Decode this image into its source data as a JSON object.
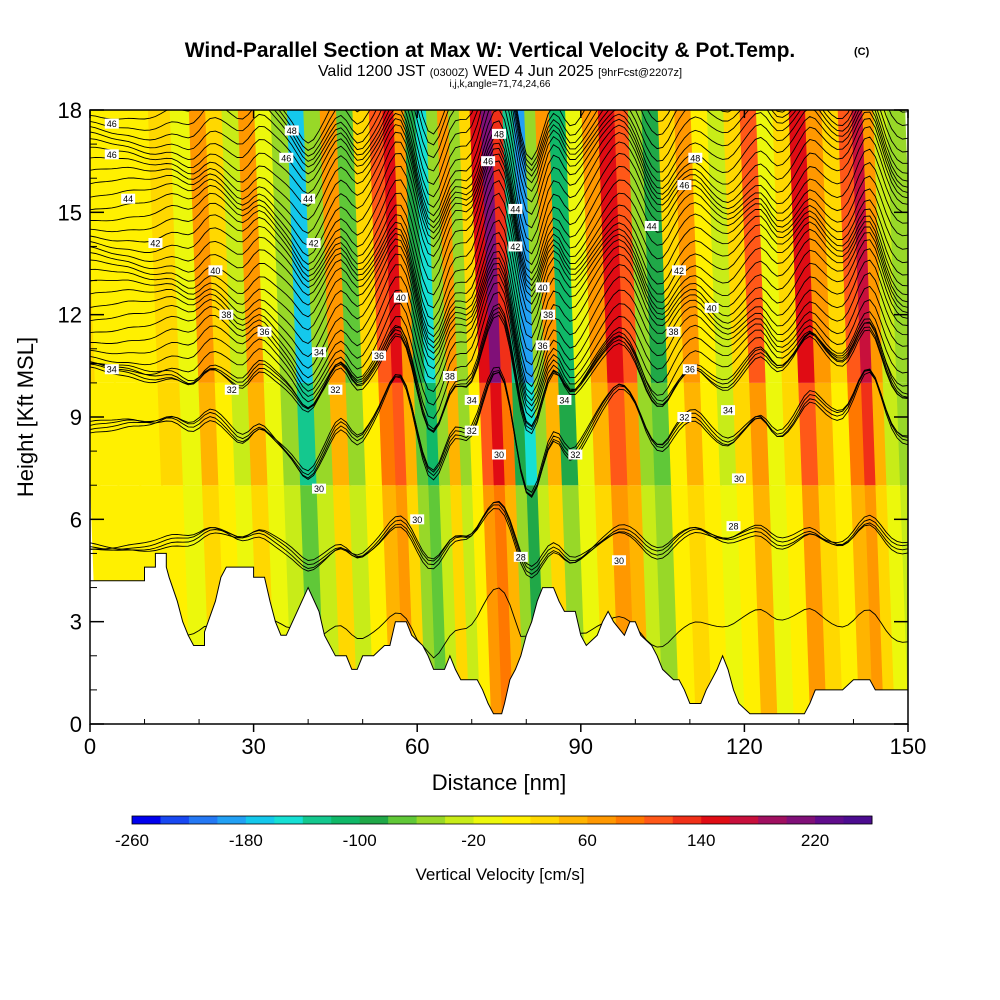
{
  "title": "Wind-Parallel Section at Max W: Vertical Velocity & Pot.Temp.",
  "copyright_mark": "(C)",
  "subtitle": {
    "valid": "Valid 1200 JST",
    "utc": "(0300Z)",
    "date": "WED 4 Jun 2025",
    "forecast": "[9hrFcst@2207z]"
  },
  "grid_info": "i,j,k,angle=71,74,24,66",
  "chart_data": {
    "type": "heatmap",
    "xlabel": "Distance [nm]",
    "ylabel": "Height [Kft MSL]",
    "xlim": [
      0,
      150
    ],
    "ylim": [
      0,
      18
    ],
    "x_ticks": [
      0,
      30,
      60,
      90,
      120,
      150
    ],
    "y_ticks": [
      0,
      3,
      6,
      9,
      12,
      15,
      18
    ],
    "colorbar": {
      "label": "Vertical Velocity [cm/s]",
      "min": -260,
      "max": 260,
      "tick_labels": [
        "-260",
        "-180",
        "-100",
        "-20",
        "60",
        "140",
        "220"
      ],
      "tick_values": [
        -260,
        -180,
        -100,
        -20,
        60,
        140,
        220
      ],
      "colors": [
        "#0000ee",
        "#1848f2",
        "#2478f4",
        "#22a0f4",
        "#14c8ec",
        "#16e0d4",
        "#14c88e",
        "#10b868",
        "#20a848",
        "#60c838",
        "#98d828",
        "#c8ec18",
        "#ecf80c",
        "#fff000",
        "#ffd800",
        "#ffb400",
        "#ff9800",
        "#ff7800",
        "#ff5818",
        "#f03018",
        "#e00c14",
        "#c8103c",
        "#a01060",
        "#801078",
        "#600c8c",
        "#4c0c90"
      ]
    },
    "vertical_velocity_columns": [
      {
        "x": 0,
        "w": 20
      },
      {
        "x": 3,
        "w": 10
      },
      {
        "x": 7,
        "w": 15
      },
      {
        "x": 11,
        "w": 0
      },
      {
        "x": 15,
        "w": 30
      },
      {
        "x": 19,
        "w": -15
      },
      {
        "x": 22,
        "w": 70
      },
      {
        "x": 25,
        "w": 25
      },
      {
        "x": 28,
        "w": -40
      },
      {
        "x": 31,
        "w": 60
      },
      {
        "x": 34,
        "w": -10
      },
      {
        "x": 37,
        "w": -60
      },
      {
        "x": 40,
        "w": -170
      },
      {
        "x": 43,
        "w": -60
      },
      {
        "x": 46,
        "w": 60
      },
      {
        "x": 49,
        "w": -80
      },
      {
        "x": 52,
        "w": 20
      },
      {
        "x": 55,
        "w": 110
      },
      {
        "x": 57,
        "w": 150
      },
      {
        "x": 59,
        "w": 60
      },
      {
        "x": 61,
        "w": -100
      },
      {
        "x": 63,
        "w": -160
      },
      {
        "x": 65,
        "w": -60
      },
      {
        "x": 67,
        "w": 60
      },
      {
        "x": 69,
        "w": -60
      },
      {
        "x": 71,
        "w": 20
      },
      {
        "x": 73,
        "w": 140
      },
      {
        "x": 75,
        "w": 200
      },
      {
        "x": 77,
        "w": 120
      },
      {
        "x": 79,
        "w": -130
      },
      {
        "x": 81,
        "w": -200
      },
      {
        "x": 83,
        "w": -60
      },
      {
        "x": 85,
        "w": 60
      },
      {
        "x": 88,
        "w": -120
      },
      {
        "x": 91,
        "w": -20
      },
      {
        "x": 94,
        "w": 70
      },
      {
        "x": 97,
        "w": 150
      },
      {
        "x": 100,
        "w": 100
      },
      {
        "x": 102,
        "w": -60
      },
      {
        "x": 105,
        "w": -100
      },
      {
        "x": 108,
        "w": 20
      },
      {
        "x": 111,
        "w": 70
      },
      {
        "x": 114,
        "w": 0
      },
      {
        "x": 117,
        "w": -40
      },
      {
        "x": 120,
        "w": 30
      },
      {
        "x": 123,
        "w": 100
      },
      {
        "x": 126,
        "w": -20
      },
      {
        "x": 129,
        "w": 40
      },
      {
        "x": 132,
        "w": 150
      },
      {
        "x": 135,
        "w": 60
      },
      {
        "x": 138,
        "w": 20
      },
      {
        "x": 141,
        "w": 110
      },
      {
        "x": 143,
        "w": 170
      },
      {
        "x": 145,
        "w": 70
      },
      {
        "x": 147,
        "w": -40
      },
      {
        "x": 150,
        "w": -60
      }
    ],
    "terrain_height_kft": [
      {
        "x": 0,
        "h": 4.2
      },
      {
        "x": 10,
        "h": 4.2
      },
      {
        "x": 10,
        "h": 4.6
      },
      {
        "x": 12,
        "h": 4.6
      },
      {
        "x": 12,
        "h": 5.0
      },
      {
        "x": 14,
        "h": 5.0
      },
      {
        "x": 14,
        "h": 4.6
      },
      {
        "x": 14.5,
        "h": 4.3
      },
      {
        "x": 16,
        "h": 3.6
      },
      {
        "x": 17,
        "h": 3.0
      },
      {
        "x": 18,
        "h": 2.6
      },
      {
        "x": 19,
        "h": 2.3
      },
      {
        "x": 21,
        "h": 2.3
      },
      {
        "x": 21,
        "h": 2.7
      },
      {
        "x": 23,
        "h": 3.6
      },
      {
        "x": 24,
        "h": 4.3
      },
      {
        "x": 25,
        "h": 4.6
      },
      {
        "x": 30,
        "h": 4.6
      },
      {
        "x": 30,
        "h": 4.3
      },
      {
        "x": 32,
        "h": 4.3
      },
      {
        "x": 33,
        "h": 3.6
      },
      {
        "x": 34,
        "h": 3.0
      },
      {
        "x": 35,
        "h": 2.6
      },
      {
        "x": 36,
        "h": 2.6
      },
      {
        "x": 38,
        "h": 3.3
      },
      {
        "x": 40,
        "h": 4.0
      },
      {
        "x": 42,
        "h": 3.3
      },
      {
        "x": 43,
        "h": 2.6
      },
      {
        "x": 45,
        "h": 2.0
      },
      {
        "x": 47,
        "h": 2.0
      },
      {
        "x": 48,
        "h": 1.6
      },
      {
        "x": 49,
        "h": 1.6
      },
      {
        "x": 50,
        "h": 2.0
      },
      {
        "x": 52,
        "h": 2.0
      },
      {
        "x": 54,
        "h": 2.3
      },
      {
        "x": 55,
        "h": 2.3
      },
      {
        "x": 56,
        "h": 3.0
      },
      {
        "x": 58,
        "h": 3.0
      },
      {
        "x": 59,
        "h": 2.6
      },
      {
        "x": 61,
        "h": 2.3
      },
      {
        "x": 62,
        "h": 2.0
      },
      {
        "x": 63,
        "h": 1.6
      },
      {
        "x": 65,
        "h": 1.6
      },
      {
        "x": 66,
        "h": 2.0
      },
      {
        "x": 67,
        "h": 1.6
      },
      {
        "x": 68,
        "h": 1.3
      },
      {
        "x": 71,
        "h": 1.3
      },
      {
        "x": 72,
        "h": 1.0
      },
      {
        "x": 73,
        "h": 0.6
      },
      {
        "x": 74,
        "h": 0.3
      },
      {
        "x": 75.5,
        "h": 0.3
      },
      {
        "x": 76,
        "h": 0.6
      },
      {
        "x": 77,
        "h": 1.3
      },
      {
        "x": 78,
        "h": 1.6
      },
      {
        "x": 79,
        "h": 2.0
      },
      {
        "x": 80,
        "h": 2.6
      },
      {
        "x": 81,
        "h": 3.0
      },
      {
        "x": 82,
        "h": 3.6
      },
      {
        "x": 83,
        "h": 4.0
      },
      {
        "x": 85,
        "h": 4.0
      },
      {
        "x": 86,
        "h": 3.6
      },
      {
        "x": 87,
        "h": 3.3
      },
      {
        "x": 89,
        "h": 3.3
      },
      {
        "x": 90,
        "h": 2.6
      },
      {
        "x": 91,
        "h": 2.3
      },
      {
        "x": 93,
        "h": 2.6
      },
      {
        "x": 94,
        "h": 3.0
      },
      {
        "x": 95,
        "h": 3.3
      },
      {
        "x": 96,
        "h": 3.0
      },
      {
        "x": 98,
        "h": 2.6
      },
      {
        "x": 99,
        "h": 3.0
      },
      {
        "x": 100,
        "h": 3.0
      },
      {
        "x": 101,
        "h": 2.6
      },
      {
        "x": 103,
        "h": 2.3
      },
      {
        "x": 104,
        "h": 2.0
      },
      {
        "x": 105,
        "h": 1.6
      },
      {
        "x": 107,
        "h": 1.3
      },
      {
        "x": 108,
        "h": 1.3
      },
      {
        "x": 109,
        "h": 1.0
      },
      {
        "x": 110,
        "h": 0.6
      },
      {
        "x": 112,
        "h": 0.6
      },
      {
        "x": 113,
        "h": 1.0
      },
      {
        "x": 114,
        "h": 1.3
      },
      {
        "x": 115,
        "h": 1.6
      },
      {
        "x": 116,
        "h": 2.0
      },
      {
        "x": 117,
        "h": 1.6
      },
      {
        "x": 118,
        "h": 1.0
      },
      {
        "x": 119,
        "h": 0.6
      },
      {
        "x": 121,
        "h": 0.3
      },
      {
        "x": 131,
        "h": 0.3
      },
      {
        "x": 132,
        "h": 0.6
      },
      {
        "x": 133,
        "h": 1.0
      },
      {
        "x": 138,
        "h": 1.0
      },
      {
        "x": 140,
        "h": 1.3
      },
      {
        "x": 143,
        "h": 1.3
      },
      {
        "x": 144,
        "h": 1.0
      },
      {
        "x": 150,
        "h": 1.0
      }
    ],
    "theta_contours": {
      "levels": [
        28,
        30,
        32,
        34,
        36,
        38,
        40,
        42,
        44,
        46,
        48
      ],
      "labels": [
        {
          "text": "46",
          "x": 4,
          "y": 17.6
        },
        {
          "text": "46",
          "x": 4,
          "y": 16.7
        },
        {
          "text": "44",
          "x": 7,
          "y": 15.4
        },
        {
          "text": "42",
          "x": 12,
          "y": 14.1
        },
        {
          "text": "40",
          "x": 23,
          "y": 13.3
        },
        {
          "text": "38",
          "x": 25,
          "y": 12.0
        },
        {
          "text": "36",
          "x": 32,
          "y": 11.5
        },
        {
          "text": "34",
          "x": 4,
          "y": 10.4
        },
        {
          "text": "32",
          "x": 26,
          "y": 9.8
        },
        {
          "text": "48",
          "x": 37,
          "y": 17.4
        },
        {
          "text": "46",
          "x": 36,
          "y": 16.6
        },
        {
          "text": "44",
          "x": 40,
          "y": 15.4
        },
        {
          "text": "42",
          "x": 41,
          "y": 14.1
        },
        {
          "text": "34",
          "x": 42,
          "y": 10.9
        },
        {
          "text": "32",
          "x": 45,
          "y": 9.8
        },
        {
          "text": "36",
          "x": 53,
          "y": 10.8
        },
        {
          "text": "40",
          "x": 57,
          "y": 12.5
        },
        {
          "text": "30",
          "x": 42,
          "y": 6.9
        },
        {
          "text": "30",
          "x": 60,
          "y": 6.0
        },
        {
          "text": "38",
          "x": 66,
          "y": 10.2
        },
        {
          "text": "34",
          "x": 70,
          "y": 9.5
        },
        {
          "text": "32",
          "x": 70,
          "y": 8.6
        },
        {
          "text": "30",
          "x": 75,
          "y": 7.9
        },
        {
          "text": "48",
          "x": 75,
          "y": 17.3
        },
        {
          "text": "46",
          "x": 73,
          "y": 16.5
        },
        {
          "text": "44",
          "x": 78,
          "y": 15.1
        },
        {
          "text": "42",
          "x": 78,
          "y": 14.0
        },
        {
          "text": "40",
          "x": 83,
          "y": 12.8
        },
        {
          "text": "38",
          "x": 84,
          "y": 12.0
        },
        {
          "text": "36",
          "x": 83,
          "y": 11.1
        },
        {
          "text": "34",
          "x": 87,
          "y": 9.5
        },
        {
          "text": "32",
          "x": 89,
          "y": 7.9
        },
        {
          "text": "28",
          "x": 79,
          "y": 4.9
        },
        {
          "text": "30",
          "x": 97,
          "y": 4.8
        },
        {
          "text": "48",
          "x": 111,
          "y": 16.6
        },
        {
          "text": "46",
          "x": 109,
          "y": 15.8
        },
        {
          "text": "44",
          "x": 103,
          "y": 14.6
        },
        {
          "text": "42",
          "x": 108,
          "y": 13.3
        },
        {
          "text": "40",
          "x": 114,
          "y": 12.2
        },
        {
          "text": "38",
          "x": 107,
          "y": 11.5
        },
        {
          "text": "36",
          "x": 110,
          "y": 10.4
        },
        {
          "text": "34",
          "x": 117,
          "y": 9.2
        },
        {
          "text": "32",
          "x": 109,
          "y": 9.0
        },
        {
          "text": "30",
          "x": 119,
          "y": 7.2
        },
        {
          "text": "28",
          "x": 118,
          "y": 5.8
        }
      ]
    }
  }
}
